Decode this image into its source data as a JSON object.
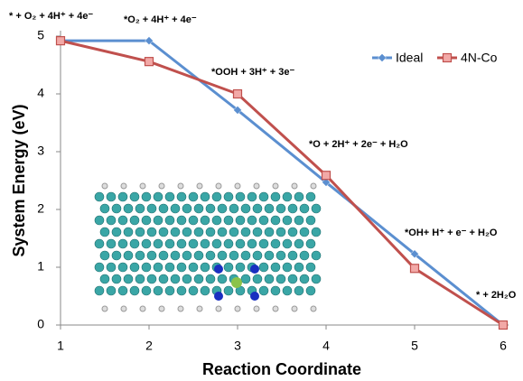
{
  "chart_data": {
    "type": "line",
    "xlabel": "Reaction Coordinate",
    "ylabel": "System Energy (eV)",
    "x": [
      1,
      2,
      3,
      4,
      5,
      6
    ],
    "series": [
      {
        "name": "Ideal",
        "color": "#5b8fd0",
        "marker": "diamond",
        "values": [
          4.92,
          4.92,
          3.72,
          2.47,
          1.23,
          0
        ]
      },
      {
        "name": "4N-Co",
        "color": "#c0504d",
        "marker": "square",
        "values": [
          4.92,
          4.56,
          4.0,
          2.59,
          0.98,
          0
        ]
      }
    ],
    "xlim": [
      1,
      6
    ],
    "xticks": [
      1,
      2,
      3,
      4,
      5,
      6
    ],
    "ylim": [
      0,
      5
    ],
    "yticks": [
      0,
      1,
      2,
      3,
      4,
      5
    ],
    "grid": false,
    "legend": "upper right",
    "annotations": [
      "* + O₂ + 4H⁺ + 4e⁻",
      "*O₂ + 4H⁺ + 4e⁻",
      "*OOH + 3H⁺ + 3e⁻",
      "*O + 2H⁺ + 2e⁻ + H₂O",
      "*OH+ H⁺ + e⁻ + H₂O",
      "* + 2H₂O"
    ]
  }
}
